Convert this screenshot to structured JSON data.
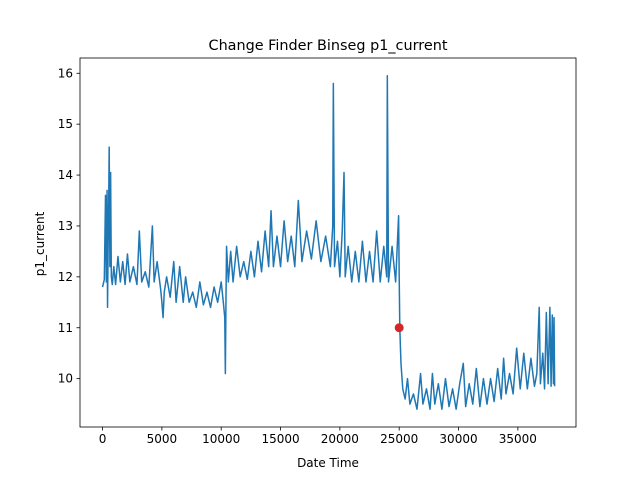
{
  "chart_data": {
    "type": "line",
    "title": "Change Finder Binseg p1_current",
    "xlabel": "Date Time",
    "ylabel": "p1_current",
    "xlim": [
      -1900,
      39900
    ],
    "ylim": [
      9.05,
      16.3
    ],
    "xticks": [
      0,
      5000,
      10000,
      15000,
      20000,
      25000,
      30000,
      35000
    ],
    "yticks": [
      10,
      11,
      12,
      13,
      14,
      15,
      16
    ],
    "grid": false,
    "legend": "none",
    "colors": {
      "series": "#1f77b4",
      "changepoint": "#d62728"
    },
    "series": [
      {
        "values": [
          [
            0,
            11.8
          ],
          [
            150,
            11.95
          ],
          [
            250,
            13.6
          ],
          [
            320,
            11.9
          ],
          [
            380,
            13.7
          ],
          [
            420,
            11.4
          ],
          [
            470,
            12.6
          ],
          [
            520,
            13.5
          ],
          [
            560,
            14.55
          ],
          [
            620,
            12.2
          ],
          [
            680,
            14.05
          ],
          [
            740,
            12.0
          ],
          [
            820,
            11.85
          ],
          [
            950,
            12.2
          ],
          [
            1100,
            11.85
          ],
          [
            1300,
            12.4
          ],
          [
            1500,
            11.9
          ],
          [
            1700,
            12.3
          ],
          [
            1900,
            11.85
          ],
          [
            2100,
            12.45
          ],
          [
            2300,
            11.9
          ],
          [
            2600,
            12.2
          ],
          [
            2900,
            11.85
          ],
          [
            3100,
            12.9
          ],
          [
            3300,
            11.9
          ],
          [
            3600,
            12.1
          ],
          [
            3900,
            11.8
          ],
          [
            4200,
            13.0
          ],
          [
            4350,
            11.9
          ],
          [
            4600,
            12.3
          ],
          [
            4900,
            11.75
          ],
          [
            5000,
            11.5
          ],
          [
            5100,
            11.2
          ],
          [
            5200,
            11.7
          ],
          [
            5400,
            12.0
          ],
          [
            5700,
            11.6
          ],
          [
            6000,
            12.3
          ],
          [
            6200,
            11.5
          ],
          [
            6500,
            12.2
          ],
          [
            6800,
            11.5
          ],
          [
            7000,
            12.0
          ],
          [
            7300,
            11.5
          ],
          [
            7600,
            11.7
          ],
          [
            7900,
            11.4
          ],
          [
            8200,
            11.9
          ],
          [
            8500,
            11.45
          ],
          [
            8800,
            11.7
          ],
          [
            9100,
            11.4
          ],
          [
            9400,
            11.8
          ],
          [
            9700,
            11.5
          ],
          [
            10000,
            11.9
          ],
          [
            10200,
            11.45
          ],
          [
            10300,
            11.2
          ],
          [
            10350,
            10.1
          ],
          [
            10400,
            11.5
          ],
          [
            10450,
            12.6
          ],
          [
            10600,
            11.9
          ],
          [
            10800,
            12.5
          ],
          [
            11000,
            11.9
          ],
          [
            11300,
            12.6
          ],
          [
            11600,
            12.0
          ],
          [
            11900,
            12.3
          ],
          [
            12200,
            11.95
          ],
          [
            12500,
            12.5
          ],
          [
            12800,
            12.0
          ],
          [
            13100,
            12.7
          ],
          [
            13400,
            12.1
          ],
          [
            13700,
            12.9
          ],
          [
            14000,
            12.2
          ],
          [
            14200,
            13.3
          ],
          [
            14400,
            12.2
          ],
          [
            14700,
            12.8
          ],
          [
            15000,
            12.2
          ],
          [
            15300,
            13.1
          ],
          [
            15600,
            12.3
          ],
          [
            15900,
            12.8
          ],
          [
            16200,
            12.2
          ],
          [
            16500,
            13.5
          ],
          [
            16800,
            12.3
          ],
          [
            17200,
            12.9
          ],
          [
            17600,
            12.35
          ],
          [
            18000,
            13.1
          ],
          [
            18400,
            12.3
          ],
          [
            18800,
            12.8
          ],
          [
            19200,
            12.2
          ],
          [
            19400,
            13.0
          ],
          [
            19450,
            15.8
          ],
          [
            19550,
            12.2
          ],
          [
            19800,
            12.7
          ],
          [
            20000,
            12.0
          ],
          [
            20200,
            12.9
          ],
          [
            20350,
            14.05
          ],
          [
            20450,
            12.0
          ],
          [
            20700,
            12.6
          ],
          [
            21000,
            11.9
          ],
          [
            21300,
            12.5
          ],
          [
            21600,
            11.9
          ],
          [
            21900,
            12.7
          ],
          [
            22200,
            11.9
          ],
          [
            22500,
            12.5
          ],
          [
            22800,
            11.9
          ],
          [
            23100,
            12.9
          ],
          [
            23400,
            11.9
          ],
          [
            23700,
            12.6
          ],
          [
            23950,
            12.0
          ],
          [
            24000,
            15.95
          ],
          [
            24100,
            11.9
          ],
          [
            24400,
            12.6
          ],
          [
            24700,
            11.9
          ],
          [
            24950,
            13.2
          ],
          [
            25000,
            12.0
          ],
          [
            25050,
            11.0
          ],
          [
            25150,
            10.3
          ],
          [
            25300,
            9.8
          ],
          [
            25500,
            9.6
          ],
          [
            25700,
            10.0
          ],
          [
            25900,
            9.5
          ],
          [
            26200,
            9.7
          ],
          [
            26500,
            9.4
          ],
          [
            26800,
            10.1
          ],
          [
            27000,
            9.5
          ],
          [
            27300,
            9.8
          ],
          [
            27600,
            9.4
          ],
          [
            27800,
            10.1
          ],
          [
            28000,
            9.5
          ],
          [
            28300,
            9.9
          ],
          [
            28600,
            9.4
          ],
          [
            28900,
            10.0
          ],
          [
            29200,
            9.45
          ],
          [
            29500,
            9.8
          ],
          [
            29800,
            9.4
          ],
          [
            30100,
            9.9
          ],
          [
            30400,
            10.3
          ],
          [
            30600,
            9.45
          ],
          [
            30900,
            9.9
          ],
          [
            31200,
            9.5
          ],
          [
            31500,
            10.2
          ],
          [
            31800,
            9.45
          ],
          [
            32100,
            10.0
          ],
          [
            32400,
            9.5
          ],
          [
            32700,
            10.0
          ],
          [
            33000,
            9.55
          ],
          [
            33300,
            10.2
          ],
          [
            33600,
            9.6
          ],
          [
            33800,
            10.4
          ],
          [
            34000,
            9.7
          ],
          [
            34300,
            10.1
          ],
          [
            34600,
            9.7
          ],
          [
            34900,
            10.6
          ],
          [
            35200,
            9.8
          ],
          [
            35500,
            10.5
          ],
          [
            35800,
            9.8
          ],
          [
            36100,
            10.4
          ],
          [
            36400,
            9.85
          ],
          [
            36600,
            10.1
          ],
          [
            36800,
            11.4
          ],
          [
            36900,
            9.9
          ],
          [
            37100,
            10.5
          ],
          [
            37250,
            9.8
          ],
          [
            37400,
            11.3
          ],
          [
            37550,
            9.9
          ],
          [
            37700,
            11.4
          ],
          [
            37800,
            9.85
          ],
          [
            37900,
            11.25
          ],
          [
            38000,
            9.9
          ],
          [
            38050,
            11.2
          ],
          [
            38100,
            9.85
          ]
        ]
      }
    ],
    "changepoints": [
      {
        "x": 25000,
        "y": 11.0
      }
    ]
  }
}
